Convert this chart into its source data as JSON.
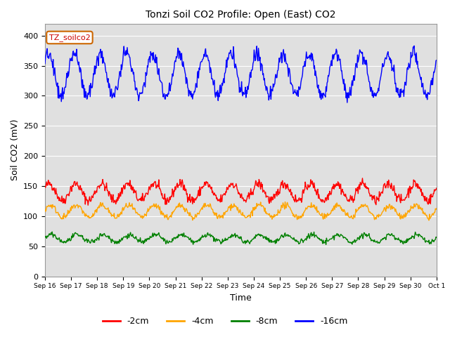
{
  "title": "Tonzi Soil CO2 Profile: Open (East) CO2",
  "ylabel": "Soil CO2 (mV)",
  "xlabel": "Time",
  "legend_label": "TZ_soilco2",
  "legend_entries": [
    "-2cm",
    "-4cm",
    "-8cm",
    "-16cm"
  ],
  "line_colors": [
    "red",
    "orange",
    "green",
    "blue"
  ],
  "ylim": [
    0,
    420
  ],
  "yticks": [
    0,
    50,
    100,
    150,
    200,
    250,
    300,
    350,
    400
  ],
  "bg_color": "#e0e0e0",
  "n_days": 15,
  "start_day": 16,
  "series_2cm_base": 140,
  "series_2cm_amp": 14,
  "series_4cm_base": 108,
  "series_4cm_amp": 10,
  "series_8cm_base": 63,
  "series_8cm_amp": 6,
  "series_16cm_base": 335,
  "series_16cm_amp": 35,
  "points_per_day": 48
}
